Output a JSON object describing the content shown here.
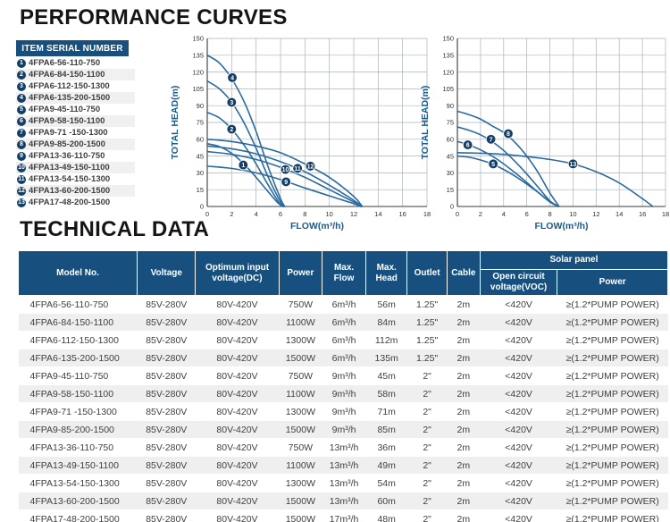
{
  "colors": {
    "primary_blue": "#17507E",
    "curve_blue": "#2B6A9F",
    "marker_navy": "#123E68",
    "axis_label_blue": "#1B5A8C",
    "grid_gray": "#A9B3BB",
    "row_alt": "#EFEFEF"
  },
  "performance": {
    "title": "PERFORMANCE  CURVES",
    "legend_title": "ITEM SERIAL NUMBER",
    "items": [
      "4FPA6-56-110-750",
      "4FPA6-84-150-1100",
      "4FPA6-112-150-1300",
      "4FPA6-135-200-1500",
      "4FPA9-45-110-750",
      "4FPA9-58-150-1100",
      "4FPA9-71 -150-1300",
      "4FPA9-85-200-1500",
      "4FPA13-36-110-750",
      "4FPA13-49-150-1100",
      "4FPA13-54-150-1300",
      "4FPA13-60-200-1500",
      "4FPA17-48-200-1500"
    ]
  },
  "chart_data": [
    {
      "type": "line",
      "xlabel": "FLOW(m³/h)",
      "ylabel": "TOTAL HEAD(m)",
      "xlim": [
        0,
        18
      ],
      "ylim": [
        0,
        150
      ],
      "xticks": [
        0,
        2,
        4,
        6,
        8,
        10,
        12,
        14,
        16,
        18
      ],
      "yticks": [
        0,
        15,
        30,
        45,
        60,
        75,
        90,
        105,
        120,
        135,
        150
      ],
      "grid": true,
      "legend_position": "on-curve-markers",
      "series": [
        {
          "name": "1",
          "marker": [
            2.95,
            37
          ],
          "points": [
            [
              0,
              56
            ],
            [
              1,
              53.5
            ],
            [
              2,
              47.5
            ],
            [
              3,
              38
            ],
            [
              4,
              26
            ],
            [
              5,
              13
            ],
            [
              5.8,
              3
            ],
            [
              6.2,
              0
            ]
          ]
        },
        {
          "name": "2",
          "marker": [
            2.0,
            69
          ],
          "points": [
            [
              0,
              84
            ],
            [
              1,
              79
            ],
            [
              2,
              69
            ],
            [
              3,
              55
            ],
            [
              4,
              38
            ],
            [
              5,
              19
            ],
            [
              5.9,
              3
            ],
            [
              6.25,
              0
            ]
          ]
        },
        {
          "name": "3",
          "marker": [
            2.0,
            93
          ],
          "points": [
            [
              0,
              112
            ],
            [
              1,
              105
            ],
            [
              2,
              93
            ],
            [
              3,
              75
            ],
            [
              4,
              52
            ],
            [
              5,
              26
            ],
            [
              6,
              4
            ],
            [
              6.3,
              0
            ]
          ]
        },
        {
          "name": "4",
          "marker": [
            2.05,
            115
          ],
          "points": [
            [
              0,
              135
            ],
            [
              1,
              128
            ],
            [
              2,
              114
            ],
            [
              3,
              94
            ],
            [
              4,
              67
            ],
            [
              5,
              35
            ],
            [
              6,
              7
            ],
            [
              6.35,
              0
            ]
          ]
        },
        {
          "name": "9",
          "marker": [
            6.45,
            22
          ],
          "points": [
            [
              0,
              36
            ],
            [
              2,
              34
            ],
            [
              4,
              30
            ],
            [
              6,
              24
            ],
            [
              8,
              16.5
            ],
            [
              10,
              9.5
            ],
            [
              12,
              2.5
            ],
            [
              12.55,
              0
            ]
          ]
        },
        {
          "name": "10",
          "marker": [
            6.4,
            33
          ],
          "points": [
            [
              0,
              49
            ],
            [
              2,
              46.5
            ],
            [
              4,
              42
            ],
            [
              6,
              35
            ],
            [
              8,
              26
            ],
            [
              10,
              15
            ],
            [
              12,
              4
            ],
            [
              12.6,
              0
            ]
          ]
        },
        {
          "name": "11",
          "marker": [
            7.4,
            34
          ],
          "points": [
            [
              0,
              54
            ],
            [
              2,
              51.5
            ],
            [
              4,
              47
            ],
            [
              6,
              40
            ],
            [
              8,
              31
            ],
            [
              10,
              19
            ],
            [
              12,
              5.5
            ],
            [
              12.65,
              0
            ]
          ]
        },
        {
          "name": "12",
          "marker": [
            8.45,
            36
          ],
          "points": [
            [
              0,
              60
            ],
            [
              2,
              58
            ],
            [
              4,
              54
            ],
            [
              6,
              48
            ],
            [
              8,
              38
            ],
            [
              10,
              26
            ],
            [
              12,
              9
            ],
            [
              12.7,
              0
            ]
          ]
        }
      ]
    },
    {
      "type": "line",
      "xlabel": "FLOW(m³/h)",
      "ylabel": "TOTAL HEAD(m)",
      "xlim": [
        0,
        18
      ],
      "ylim": [
        0,
        150
      ],
      "xticks": [
        0,
        2,
        4,
        6,
        8,
        10,
        12,
        14,
        16,
        18
      ],
      "yticks": [
        0,
        15,
        30,
        45,
        60,
        75,
        90,
        105,
        120,
        135,
        150
      ],
      "grid": true,
      "legend_position": "on-curve-markers",
      "series": [
        {
          "name": "5",
          "marker": [
            3.1,
            38
          ],
          "points": [
            [
              0,
              45
            ],
            [
              1,
              44
            ],
            [
              2,
              41.5
            ],
            [
              3,
              38
            ],
            [
              4,
              33
            ],
            [
              5,
              27
            ],
            [
              6,
              20
            ],
            [
              7,
              12.5
            ],
            [
              8,
              4.5
            ],
            [
              8.7,
              0
            ]
          ]
        },
        {
          "name": "6",
          "marker": [
            0.9,
            55
          ],
          "points": [
            [
              0,
              58
            ],
            [
              1,
              55
            ],
            [
              2,
              50.5
            ],
            [
              3,
              45
            ],
            [
              4,
              38
            ],
            [
              5,
              30
            ],
            [
              6,
              21.5
            ],
            [
              7,
              12.5
            ],
            [
              8,
              4
            ],
            [
              8.72,
              0
            ]
          ]
        },
        {
          "name": "7",
          "marker": [
            2.9,
            60
          ],
          "points": [
            [
              0,
              71
            ],
            [
              1,
              68
            ],
            [
              2,
              64
            ],
            [
              3,
              58
            ],
            [
              4,
              50
            ],
            [
              5,
              40
            ],
            [
              6,
              29
            ],
            [
              7,
              17
            ],
            [
              8,
              5
            ],
            [
              8.75,
              0
            ]
          ]
        },
        {
          "name": "8",
          "marker": [
            4.4,
            65
          ],
          "points": [
            [
              0,
              85
            ],
            [
              1,
              82
            ],
            [
              2,
              78
            ],
            [
              3,
              72
            ],
            [
              4,
              66
            ],
            [
              5,
              57
            ],
            [
              6,
              45
            ],
            [
              7,
              30
            ],
            [
              8,
              12
            ],
            [
              8.8,
              0
            ]
          ]
        },
        {
          "name": "13",
          "marker": [
            10.0,
            38
          ],
          "points": [
            [
              0,
              48
            ],
            [
              2,
              47.5
            ],
            [
              4,
              46.5
            ],
            [
              6,
              44.5
            ],
            [
              8,
              42
            ],
            [
              10,
              38
            ],
            [
              12,
              31
            ],
            [
              14,
              21
            ],
            [
              16,
              7
            ],
            [
              16.9,
              0
            ]
          ]
        }
      ]
    }
  ],
  "technical": {
    "title": "TECHNICAL  DATA",
    "columns": {
      "model": "Model No.",
      "voltage": "Voltage",
      "optimum": "Optimum input voltage(DC)",
      "power": "Power",
      "max_flow": "Max. Flow",
      "max_head": "Max. Head",
      "outlet": "Outlet",
      "cable": "Cable",
      "solar_panel": "Solar panel",
      "open_circuit": "Open circuit voltage(VOC)",
      "solar_power": "Power"
    },
    "rows": [
      [
        "4FPA6-56-110-750",
        "85V-280V",
        "80V-420V",
        "750W",
        "6m³/h",
        "56m",
        "1.25\"",
        "2m",
        "<420V",
        "≥(1.2*PUMP POWER)"
      ],
      [
        "4FPA6-84-150-1100",
        "85V-280V",
        "80V-420V",
        "1100W",
        "6m³/h",
        "84m",
        "1.25\"",
        "2m",
        "<420V",
        "≥(1.2*PUMP POWER)"
      ],
      [
        "4FPA6-112-150-1300",
        "85V-280V",
        "80V-420V",
        "1300W",
        "6m³/h",
        "112m",
        "1.25\"",
        "2m",
        "<420V",
        "≥(1.2*PUMP POWER)"
      ],
      [
        "4FPA6-135-200-1500",
        "85V-280V",
        "80V-420V",
        "1500W",
        "6m³/h",
        "135m",
        "1.25\"",
        "2m",
        "<420V",
        "≥(1.2*PUMP POWER)"
      ],
      [
        "4FPA9-45-110-750",
        "85V-280V",
        "80V-420V",
        "750W",
        "9m³/h",
        "45m",
        "2\"",
        "2m",
        "<420V",
        "≥(1.2*PUMP POWER)"
      ],
      [
        "4FPA9-58-150-1100",
        "85V-280V",
        "80V-420V",
        "1100W",
        "9m³/h",
        "58m",
        "2\"",
        "2m",
        "<420V",
        "≥(1.2*PUMP POWER)"
      ],
      [
        "4FPA9-71 -150-1300",
        "85V-280V",
        "80V-420V",
        "1300W",
        "9m³/h",
        "71m",
        "2\"",
        "2m",
        "<420V",
        "≥(1.2*PUMP POWER)"
      ],
      [
        "4FPA9-85-200-1500",
        "85V-280V",
        "80V-420V",
        "1500W",
        "9m³/h",
        "85m",
        "2\"",
        "2m",
        "<420V",
        "≥(1.2*PUMP POWER)"
      ],
      [
        "4FPA13-36-110-750",
        "85V-280V",
        "80V-420V",
        "750W",
        "13m³/h",
        "36m",
        "2\"",
        "2m",
        "<420V",
        "≥(1.2*PUMP POWER)"
      ],
      [
        "4FPA13-49-150-1100",
        "85V-280V",
        "80V-420V",
        "1100W",
        "13m³/h",
        "49m",
        "2\"",
        "2m",
        "<420V",
        "≥(1.2*PUMP POWER)"
      ],
      [
        "4FPA13-54-150-1300",
        "85V-280V",
        "80V-420V",
        "1300W",
        "13m³/h",
        "54m",
        "2\"",
        "2m",
        "<420V",
        "≥(1.2*PUMP POWER)"
      ],
      [
        "4FPA13-60-200-1500",
        "85V-280V",
        "80V-420V",
        "1500W",
        "13m³/h",
        "60m",
        "2\"",
        "2m",
        "<420V",
        "≥(1.2*PUMP POWER)"
      ],
      [
        "4FPA17-48-200-1500",
        "85V-280V",
        "80V-420V",
        "1500W",
        "17m³/h",
        "48m",
        "2\"",
        "2m",
        "<420V",
        "≥(1.2*PUMP POWER)"
      ]
    ]
  }
}
